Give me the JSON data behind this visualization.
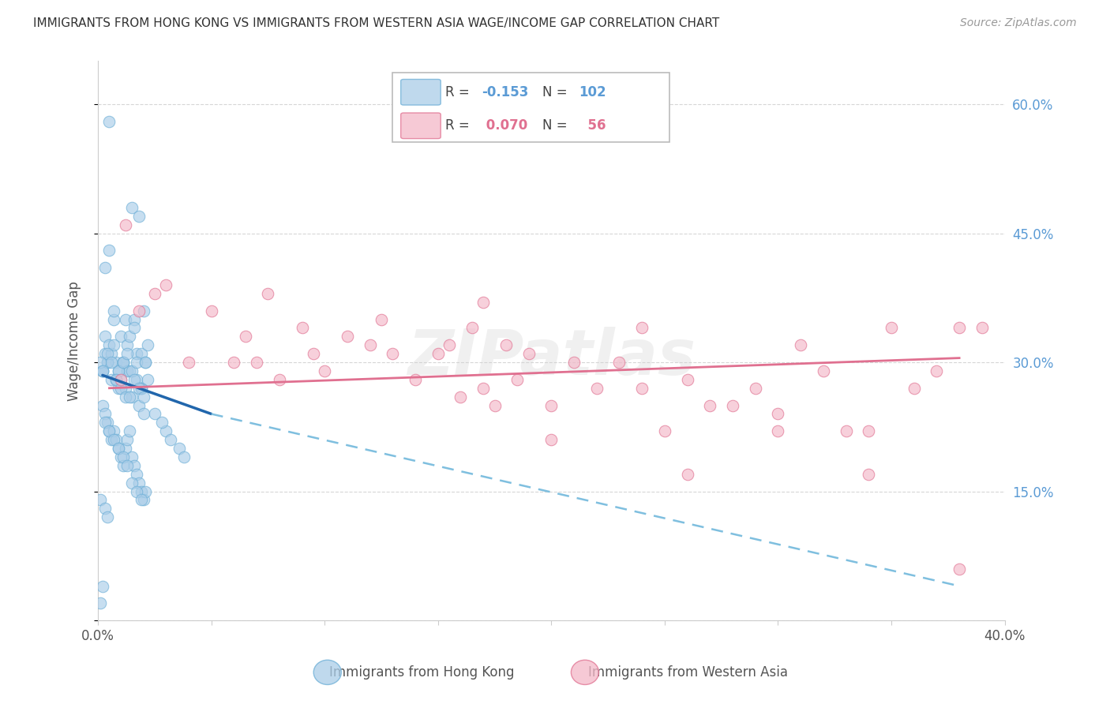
{
  "title": "IMMIGRANTS FROM HONG KONG VS IMMIGRANTS FROM WESTERN ASIA WAGE/INCOME GAP CORRELATION CHART",
  "source": "Source: ZipAtlas.com",
  "ylabel": "Wage/Income Gap",
  "xlim": [
    0.0,
    0.4
  ],
  "ylim": [
    0.0,
    0.65
  ],
  "right_ytick_color": "#5b9bd5",
  "hk_color": "#aacde8",
  "hk_edge_color": "#6baed6",
  "wa_color": "#f4b8c8",
  "wa_edge_color": "#e07090",
  "hk_R": -0.153,
  "hk_N": 102,
  "wa_R": 0.07,
  "wa_N": 56,
  "legend_label_hk": "Immigrants from Hong Kong",
  "legend_label_wa": "Immigrants from Western Asia",
  "background_color": "#ffffff",
  "grid_color": "#cccccc",
  "watermark": "ZIPatlas",
  "hk_trend_start_x": 0.002,
  "hk_trend_start_y": 0.285,
  "hk_trend_solid_end_x": 0.05,
  "hk_trend_solid_end_y": 0.24,
  "hk_trend_dashed_end_x": 0.38,
  "hk_trend_dashed_end_y": 0.04,
  "wa_trend_start_x": 0.005,
  "wa_trend_start_y": 0.27,
  "wa_trend_end_x": 0.38,
  "wa_trend_end_y": 0.305,
  "hk_scatter_x": [
    0.002,
    0.003,
    0.004,
    0.005,
    0.006,
    0.007,
    0.008,
    0.009,
    0.01,
    0.011,
    0.012,
    0.013,
    0.014,
    0.015,
    0.016,
    0.017,
    0.018,
    0.019,
    0.02,
    0.021,
    0.022,
    0.003,
    0.005,
    0.007,
    0.009,
    0.011,
    0.013,
    0.015,
    0.017,
    0.019,
    0.002,
    0.004,
    0.006,
    0.008,
    0.01,
    0.012,
    0.014,
    0.016,
    0.018,
    0.02,
    0.003,
    0.005,
    0.007,
    0.009,
    0.011,
    0.013,
    0.015,
    0.017,
    0.019,
    0.021,
    0.004,
    0.006,
    0.008,
    0.01,
    0.012,
    0.014,
    0.016,
    0.018,
    0.02,
    0.022,
    0.002,
    0.003,
    0.004,
    0.005,
    0.006,
    0.007,
    0.008,
    0.009,
    0.01,
    0.011,
    0.012,
    0.013,
    0.014,
    0.015,
    0.016,
    0.017,
    0.018,
    0.019,
    0.02,
    0.021,
    0.003,
    0.005,
    0.007,
    0.009,
    0.011,
    0.013,
    0.015,
    0.017,
    0.019,
    0.001,
    0.001,
    0.002,
    0.003,
    0.004,
    0.03,
    0.032,
    0.036,
    0.038,
    0.025,
    0.028,
    0.001,
    0.002
  ],
  "hk_scatter_y": [
    0.29,
    0.31,
    0.3,
    0.58,
    0.28,
    0.35,
    0.3,
    0.27,
    0.33,
    0.3,
    0.35,
    0.32,
    0.33,
    0.48,
    0.35,
    0.31,
    0.47,
    0.31,
    0.36,
    0.3,
    0.32,
    0.41,
    0.43,
    0.36,
    0.29,
    0.3,
    0.29,
    0.26,
    0.28,
    0.27,
    0.29,
    0.3,
    0.31,
    0.28,
    0.28,
    0.27,
    0.29,
    0.34,
    0.25,
    0.24,
    0.33,
    0.32,
    0.32,
    0.29,
    0.3,
    0.31,
    0.29,
    0.3,
    0.27,
    0.3,
    0.31,
    0.3,
    0.28,
    0.27,
    0.26,
    0.26,
    0.28,
    0.27,
    0.26,
    0.28,
    0.25,
    0.24,
    0.23,
    0.22,
    0.21,
    0.22,
    0.21,
    0.2,
    0.19,
    0.18,
    0.2,
    0.21,
    0.22,
    0.19,
    0.18,
    0.17,
    0.16,
    0.15,
    0.14,
    0.15,
    0.23,
    0.22,
    0.21,
    0.2,
    0.19,
    0.18,
    0.16,
    0.15,
    0.14,
    0.14,
    0.02,
    0.04,
    0.13,
    0.12,
    0.22,
    0.21,
    0.2,
    0.19,
    0.24,
    0.23,
    0.3,
    0.29
  ],
  "wa_scatter_x": [
    0.01,
    0.012,
    0.018,
    0.025,
    0.03,
    0.04,
    0.05,
    0.06,
    0.065,
    0.07,
    0.075,
    0.08,
    0.09,
    0.095,
    0.1,
    0.11,
    0.12,
    0.125,
    0.13,
    0.14,
    0.15,
    0.155,
    0.16,
    0.165,
    0.17,
    0.175,
    0.18,
    0.185,
    0.19,
    0.2,
    0.21,
    0.22,
    0.23,
    0.24,
    0.25,
    0.26,
    0.27,
    0.28,
    0.29,
    0.3,
    0.31,
    0.32,
    0.33,
    0.34,
    0.35,
    0.36,
    0.37,
    0.38,
    0.39,
    0.17,
    0.2,
    0.24,
    0.26,
    0.3,
    0.34,
    0.38
  ],
  "wa_scatter_y": [
    0.28,
    0.46,
    0.36,
    0.38,
    0.39,
    0.3,
    0.36,
    0.3,
    0.33,
    0.3,
    0.38,
    0.28,
    0.34,
    0.31,
    0.29,
    0.33,
    0.32,
    0.35,
    0.31,
    0.28,
    0.31,
    0.32,
    0.26,
    0.34,
    0.27,
    0.25,
    0.32,
    0.28,
    0.31,
    0.25,
    0.3,
    0.27,
    0.3,
    0.27,
    0.22,
    0.28,
    0.25,
    0.25,
    0.27,
    0.24,
    0.32,
    0.29,
    0.22,
    0.22,
    0.34,
    0.27,
    0.29,
    0.34,
    0.34,
    0.37,
    0.21,
    0.34,
    0.17,
    0.22,
    0.17,
    0.06
  ]
}
